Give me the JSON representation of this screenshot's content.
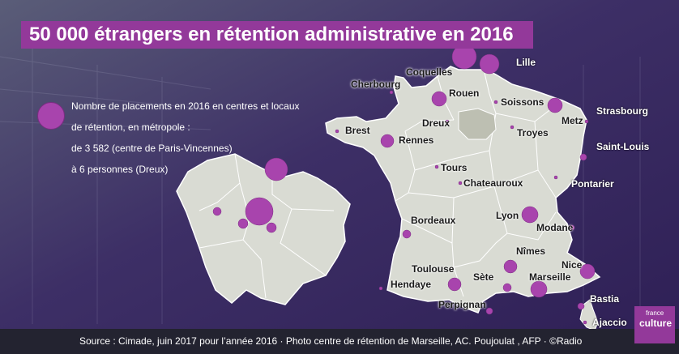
{
  "title": "50 000 étrangers en rétention administrative en 2016",
  "legend": {
    "line1": "Nombre de placements en 2016 en centres et locaux",
    "line2": "de rétention, en métropole :",
    "line3": "de 3 582 (centre de Paris-Vincennes)",
    "line4": "à 6 personnes (Dreux)"
  },
  "cities": [
    {
      "name": "Coquelles"
    },
    {
      "name": "Lille"
    },
    {
      "name": "Cherbourg"
    },
    {
      "name": "Rouen"
    },
    {
      "name": "Soissons"
    },
    {
      "name": "Strasbourg"
    },
    {
      "name": "Metz"
    },
    {
      "name": "Dreux"
    },
    {
      "name": "Brest"
    },
    {
      "name": "Troyes"
    },
    {
      "name": "Saint-Louis"
    },
    {
      "name": "Rennes"
    },
    {
      "name": "Tours"
    },
    {
      "name": "Pontarier"
    },
    {
      "name": "Chateauroux"
    },
    {
      "name": "Lyon"
    },
    {
      "name": "Bordeaux"
    },
    {
      "name": "Modane"
    },
    {
      "name": "Nîmes"
    },
    {
      "name": "Nice"
    },
    {
      "name": "Toulouse"
    },
    {
      "name": "Sète"
    },
    {
      "name": "Marseille"
    },
    {
      "name": "Hendaye"
    },
    {
      "name": "Bastia"
    },
    {
      "name": "Perpignan"
    },
    {
      "name": "Ajaccio"
    }
  ],
  "footer": "Source : Cimade, juin 2017 pour l’année 2016  ·  Photo centre de rétention de Marseille, AC. Poujoulat , AFP  ·  ©Radio",
  "logo": {
    "top": "france",
    "bottom": "culture"
  },
  "colors": {
    "bubble": "#a844ad",
    "title_bg": "#93399a",
    "land": "#d9dbd3",
    "footer_bg": "#232330"
  }
}
